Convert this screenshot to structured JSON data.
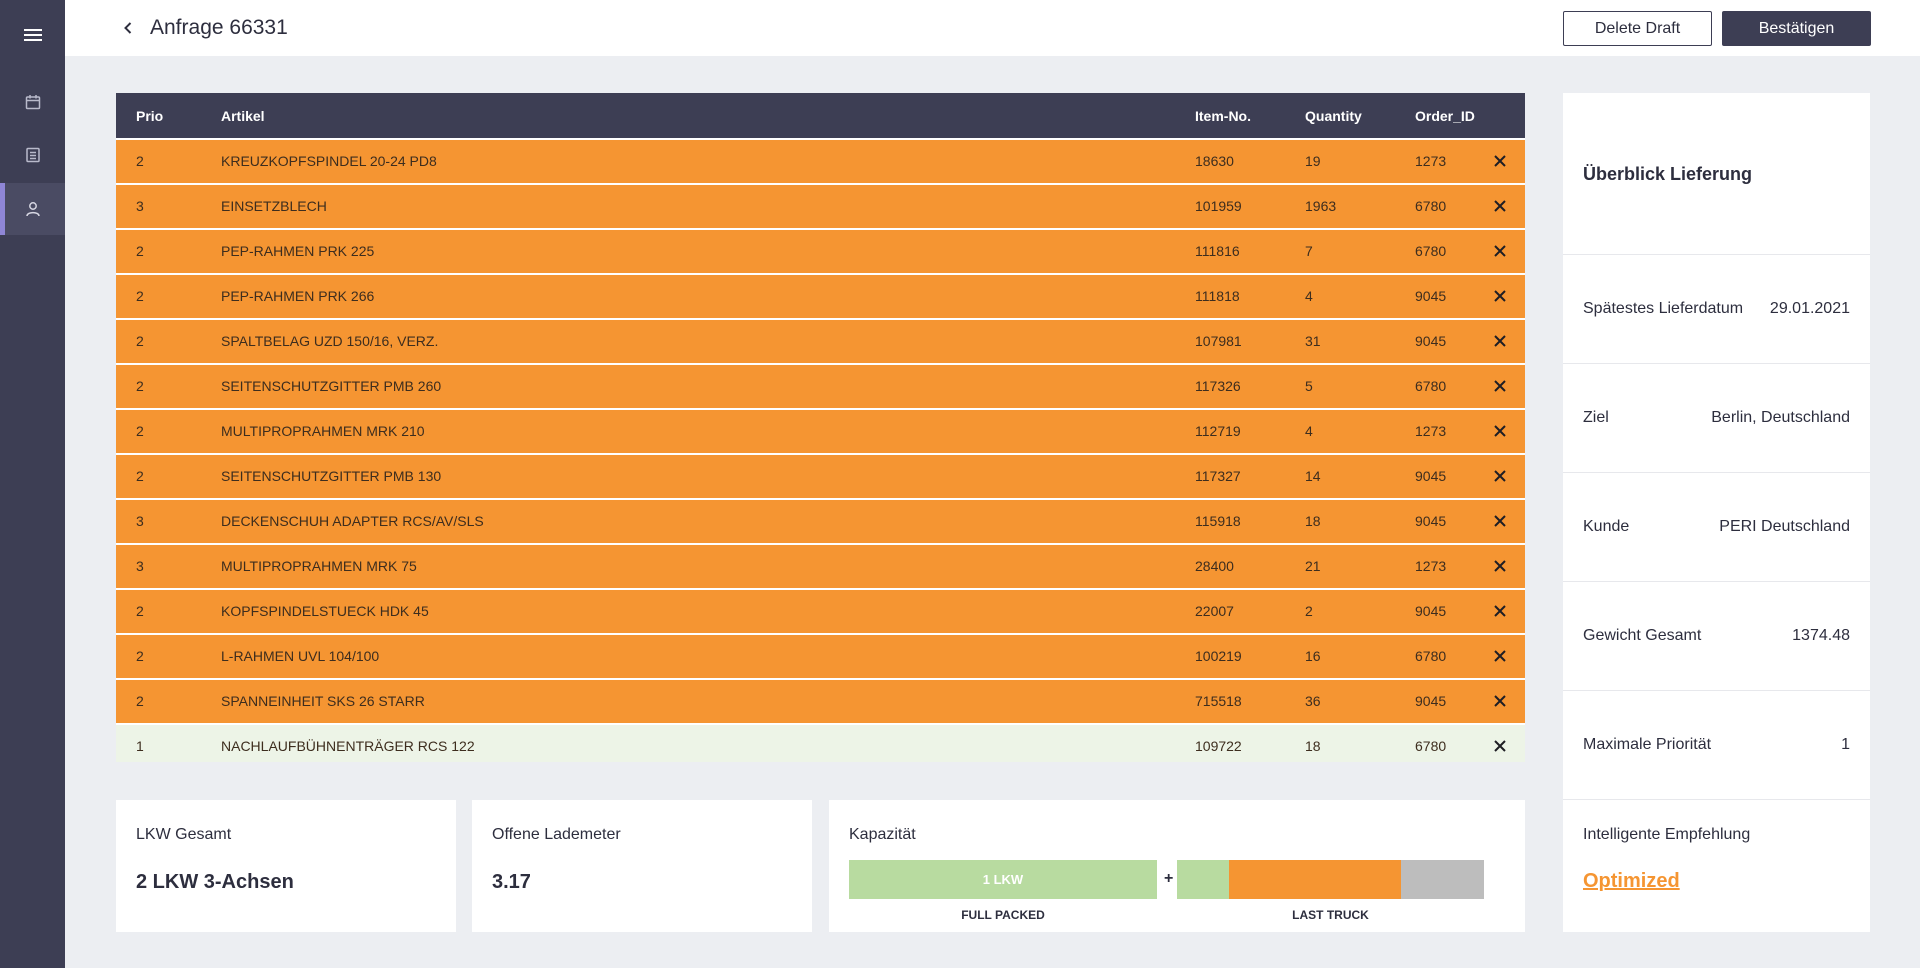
{
  "page": {
    "title": "Anfrage 66331"
  },
  "sidebar": {
    "items": [
      {
        "icon": "menu-icon"
      },
      {
        "icon": "calendar-icon"
      },
      {
        "icon": "list-icon"
      },
      {
        "icon": "user-icon",
        "active": true
      }
    ]
  },
  "actions": {
    "delete_label": "Delete Draft",
    "confirm_label": "Bestätigen"
  },
  "table": {
    "headers": {
      "prio": "Prio",
      "artikel": "Artikel",
      "item_no": "Item-No.",
      "quantity": "Quantity",
      "order_id": "Order_ID"
    },
    "rows": [
      {
        "prio": "2",
        "artikel": "KREUZKOPFSPINDEL 20-24 PD8",
        "item_no": "18630",
        "quantity": "19",
        "order_id": "1273",
        "status": "orange"
      },
      {
        "prio": "3",
        "artikel": "EINSETZBLECH",
        "item_no": "101959",
        "quantity": "1963",
        "order_id": "6780",
        "status": "orange"
      },
      {
        "prio": "2",
        "artikel": "PEP-RAHMEN PRK 225",
        "item_no": "111816",
        "quantity": "7",
        "order_id": "6780",
        "status": "orange"
      },
      {
        "prio": "2",
        "artikel": "PEP-RAHMEN PRK 266",
        "item_no": "111818",
        "quantity": "4",
        "order_id": "9045",
        "status": "orange"
      },
      {
        "prio": "2",
        "artikel": "SPALTBELAG UZD 150/16, VERZ.",
        "item_no": "107981",
        "quantity": "31",
        "order_id": "9045",
        "status": "orange"
      },
      {
        "prio": "2",
        "artikel": "SEITENSCHUTZGITTER PMB 260",
        "item_no": "117326",
        "quantity": "5",
        "order_id": "6780",
        "status": "orange"
      },
      {
        "prio": "2",
        "artikel": "MULTIPROPRAHMEN MRK 210",
        "item_no": "112719",
        "quantity": "4",
        "order_id": "1273",
        "status": "orange"
      },
      {
        "prio": "2",
        "artikel": "SEITENSCHUTZGITTER PMB 130",
        "item_no": "117327",
        "quantity": "14",
        "order_id": "9045",
        "status": "orange"
      },
      {
        "prio": "3",
        "artikel": "DECKENSCHUH ADAPTER RCS/AV/SLS",
        "item_no": "115918",
        "quantity": "18",
        "order_id": "9045",
        "status": "orange"
      },
      {
        "prio": "3",
        "artikel": "MULTIPROPRAHMEN MRK 75",
        "item_no": "28400",
        "quantity": "21",
        "order_id": "1273",
        "status": "orange"
      },
      {
        "prio": "2",
        "artikel": "KOPFSPINDELSTUECK HDK 45",
        "item_no": "22007",
        "quantity": "2",
        "order_id": "9045",
        "status": "orange"
      },
      {
        "prio": "2",
        "artikel": "L-RAHMEN UVL 104/100",
        "item_no": "100219",
        "quantity": "16",
        "order_id": "6780",
        "status": "orange"
      },
      {
        "prio": "2",
        "artikel": "SPANNEINHEIT SKS 26 STARR",
        "item_no": "715518",
        "quantity": "36",
        "order_id": "9045",
        "status": "orange"
      },
      {
        "prio": "1",
        "artikel": "NACHLAUFBÜHNENTRÄGER RCS 122",
        "item_no": "109722",
        "quantity": "18",
        "order_id": "6780",
        "status": "green"
      }
    ]
  },
  "overview": {
    "title": "Überblick Lieferung",
    "rows": [
      {
        "label": "Spätestes Lieferdatum",
        "value": "29.01.2021"
      },
      {
        "label": "Ziel",
        "value": "Berlin, Deutschland"
      },
      {
        "label": "Kunde",
        "value": "PERI Deutschland"
      },
      {
        "label": "Gewicht Gesamt",
        "value": "1374.48"
      },
      {
        "label": "Maximale Priorität",
        "value": "1"
      }
    ],
    "recommendation_label": "Intelligente Empfehlung",
    "recommendation_value": "Optimized"
  },
  "summary": {
    "lkw_label": "LKW Gesamt",
    "lkw_value": "2 LKW 3-Achsen",
    "lademeter_label": "Offene Lademeter",
    "lademeter_value": "3.17",
    "capacity_label": "Kapazität",
    "full_bar_text": "1 LKW",
    "plus": "+",
    "full_caption": "FULL PACKED",
    "last_caption": "LAST TRUCK",
    "last_truck_fill": {
      "green": 0.17,
      "orange": 0.56,
      "grey": 0.27
    }
  },
  "colors": {
    "sidebar": "#3d3e54",
    "header": "#3d3e54",
    "row_orange": "#f59532",
    "row_green": "#edf4e7",
    "bar_green": "#b8dba0",
    "bar_orange": "#f59532",
    "bar_grey": "#bdbdbd",
    "accent": "#8f86d6"
  }
}
